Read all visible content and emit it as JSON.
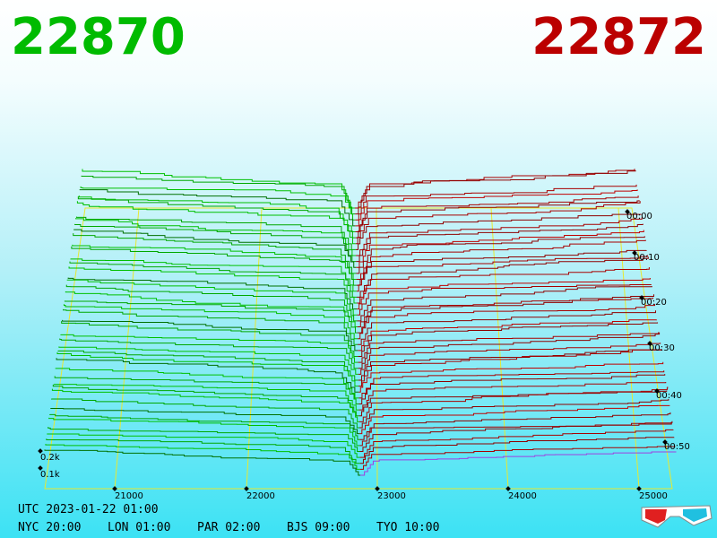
{
  "prices": {
    "bid": "22870",
    "ask": "22872"
  },
  "price_axis": {
    "ticks": [
      "21000",
      "22000",
      "23000",
      "24000",
      "25000"
    ]
  },
  "depth_axis": {
    "ticks": [
      "0.2k",
      "0.1k"
    ]
  },
  "time_axis": {
    "ticks": [
      "00:00",
      "00:10",
      "00:20",
      "00:30",
      "00:40",
      "00:50"
    ]
  },
  "clock": {
    "utc": "UTC 2023-01-22 01:00",
    "cities": [
      "NYC 20:00",
      "LON 01:00",
      "PAR 02:00",
      "BJS 09:00",
      "TYO 10:00"
    ]
  }
}
